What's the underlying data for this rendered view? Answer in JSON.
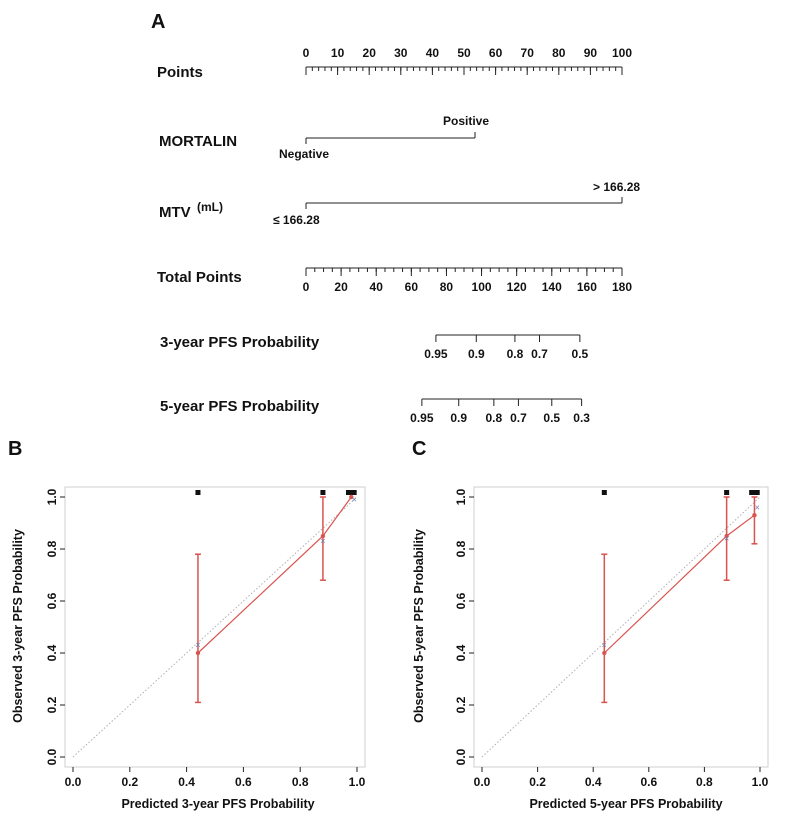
{
  "chart_data": [
    {
      "type": "nomogram",
      "panel_label": "A",
      "rows": [
        {
          "label": "Points",
          "kind": "scale",
          "ticks": [
            "0",
            "10",
            "20",
            "30",
            "40",
            "50",
            "60",
            "70",
            "80",
            "90",
            "100"
          ]
        },
        {
          "label": "MORTALIN",
          "kind": "categorical",
          "levels": [
            {
              "name": "Negative",
              "points": 0
            },
            {
              "name": "Positive",
              "points": 53.5
            }
          ]
        },
        {
          "label": "MTV",
          "label_unit": "(mL)",
          "kind": "categorical",
          "levels": [
            {
              "name": "≤ 166.28",
              "points": 0
            },
            {
              "name": "> 166.28",
              "points": 100
            }
          ]
        },
        {
          "label": "Total Points",
          "kind": "scale",
          "ticks": [
            "0",
            "20",
            "40",
            "60",
            "80",
            "100",
            "120",
            "140",
            "160",
            "180"
          ]
        },
        {
          "label": "3-year PFS Probability",
          "kind": "probability",
          "ticks": [
            "0.95",
            "0.9",
            "0.8",
            "0.7",
            "0.5"
          ],
          "tick_total_points": [
            74,
            97,
            119,
            133,
            156
          ]
        },
        {
          "label": "5-year PFS Probability",
          "kind": "probability",
          "ticks": [
            "0.95",
            "0.9",
            "0.8",
            "0.7",
            "0.5",
            "0.3"
          ],
          "tick_total_points": [
            66,
            87,
            107,
            121,
            140,
            157
          ]
        }
      ]
    },
    {
      "type": "calibration",
      "panel_label": "B",
      "xlabel": "Predicted 3-year PFS Probability",
      "ylabel": "Observed 3-year PFS Probability",
      "xlim": [
        0.0,
        1.0
      ],
      "ylim": [
        0.0,
        1.0
      ],
      "x_ticks": [
        "0.0",
        "0.2",
        "0.4",
        "0.6",
        "0.8",
        "1.0"
      ],
      "y_ticks": [
        "0.0",
        "0.2",
        "0.4",
        "0.6",
        "0.8",
        "1.0"
      ],
      "points": [
        {
          "x": 0.44,
          "y": 0.4,
          "lower": 0.21,
          "upper": 0.78
        },
        {
          "x": 0.88,
          "y": 0.85,
          "lower": 0.68,
          "upper": 1.0
        },
        {
          "x": 0.98,
          "y": 1.0,
          "lower": 1.0,
          "upper": 1.0
        }
      ],
      "bias_corrected": [
        {
          "x": 0.44,
          "y": 0.43
        },
        {
          "x": 0.88,
          "y": 0.83
        },
        {
          "x": 0.99,
          "y": 0.99
        }
      ],
      "rug_x": [
        0.44,
        0.88,
        0.97,
        0.98,
        0.99
      ]
    },
    {
      "type": "calibration",
      "panel_label": "C",
      "xlabel": "Predicted 5-year PFS Probability",
      "ylabel": "Observed 5-year PFS Probability",
      "xlim": [
        0.0,
        1.0
      ],
      "ylim": [
        0.0,
        1.0
      ],
      "x_ticks": [
        "0.0",
        "0.2",
        "0.4",
        "0.6",
        "0.8",
        "1.0"
      ],
      "y_ticks": [
        "0.0",
        "0.2",
        "0.4",
        "0.6",
        "0.8",
        "1.0"
      ],
      "points": [
        {
          "x": 0.44,
          "y": 0.4,
          "lower": 0.21,
          "upper": 0.78
        },
        {
          "x": 0.88,
          "y": 0.85,
          "lower": 0.68,
          "upper": 1.0
        },
        {
          "x": 0.98,
          "y": 0.93,
          "lower": 0.82,
          "upper": 1.0
        }
      ],
      "bias_corrected": [
        {
          "x": 0.44,
          "y": 0.43
        },
        {
          "x": 0.88,
          "y": 0.84
        },
        {
          "x": 0.99,
          "y": 0.96
        }
      ],
      "rug_x": [
        0.44,
        0.88,
        0.97,
        0.98,
        0.99
      ]
    }
  ],
  "colors": {
    "observed": "#d9534f",
    "bias_corrected": "#6b7fb3",
    "ideal": "#b0b0b0",
    "axis": "#222222"
  }
}
